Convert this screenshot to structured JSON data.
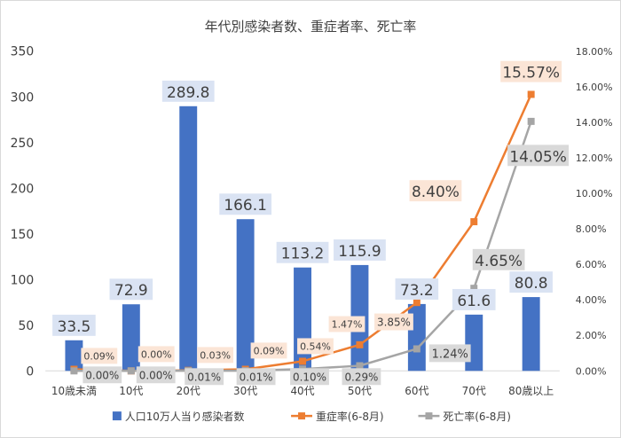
{
  "chart_data": {
    "type": "bar",
    "title": "年代別感染者数、重症者率、死亡率",
    "categories": [
      "10歳未満",
      "10代",
      "20代",
      "30代",
      "40代",
      "50代",
      "60代",
      "70代",
      "80歳以上"
    ],
    "y_left": {
      "range": [
        0,
        350
      ],
      "ticks": [
        "0",
        "50",
        "100",
        "150",
        "200",
        "250",
        "300",
        "350"
      ]
    },
    "y_right": {
      "range": [
        0,
        18
      ],
      "ticks": [
        "0.00%",
        "2.00%",
        "4.00%",
        "6.00%",
        "8.00%",
        "10.00%",
        "12.00%",
        "14.00%",
        "16.00%",
        "18.00%"
      ]
    },
    "series": [
      {
        "name": "人口10万人当り感染者数",
        "type": "bar",
        "color": "#4472C4",
        "values": [
          33.5,
          72.9,
          289.8,
          166.1,
          113.2,
          115.9,
          73.2,
          61.6,
          80.8
        ],
        "labels": [
          "33.5",
          "72.9",
          "289.8",
          "166.1",
          "113.2",
          "115.9",
          "73.2",
          "61.6",
          "80.8"
        ]
      },
      {
        "name": "重症率(6-8月)",
        "type": "line",
        "axis": "right",
        "color": "#ED7D31",
        "values": [
          0.09,
          0.0,
          0.03,
          0.09,
          0.54,
          1.47,
          3.85,
          8.4,
          15.57
        ],
        "labels": [
          "0.09%",
          "0.00%",
          "0.03%",
          "0.09%",
          "0.54%",
          "1.47%",
          "3.85%",
          "8.40%",
          "15.57%"
        ]
      },
      {
        "name": "死亡率(6-8月)",
        "type": "line",
        "axis": "right",
        "color": "#A5A5A5",
        "values": [
          0.0,
          0.0,
          0.01,
          0.01,
          0.1,
          0.29,
          1.24,
          4.65,
          14.05
        ],
        "labels": [
          "0.00%",
          "0.00%",
          "0.01%",
          "0.01%",
          "0.10%",
          "0.29%",
          "1.24%",
          "4.65%",
          "14.05%"
        ]
      }
    ],
    "legend_position": "bottom",
    "grid": false
  }
}
